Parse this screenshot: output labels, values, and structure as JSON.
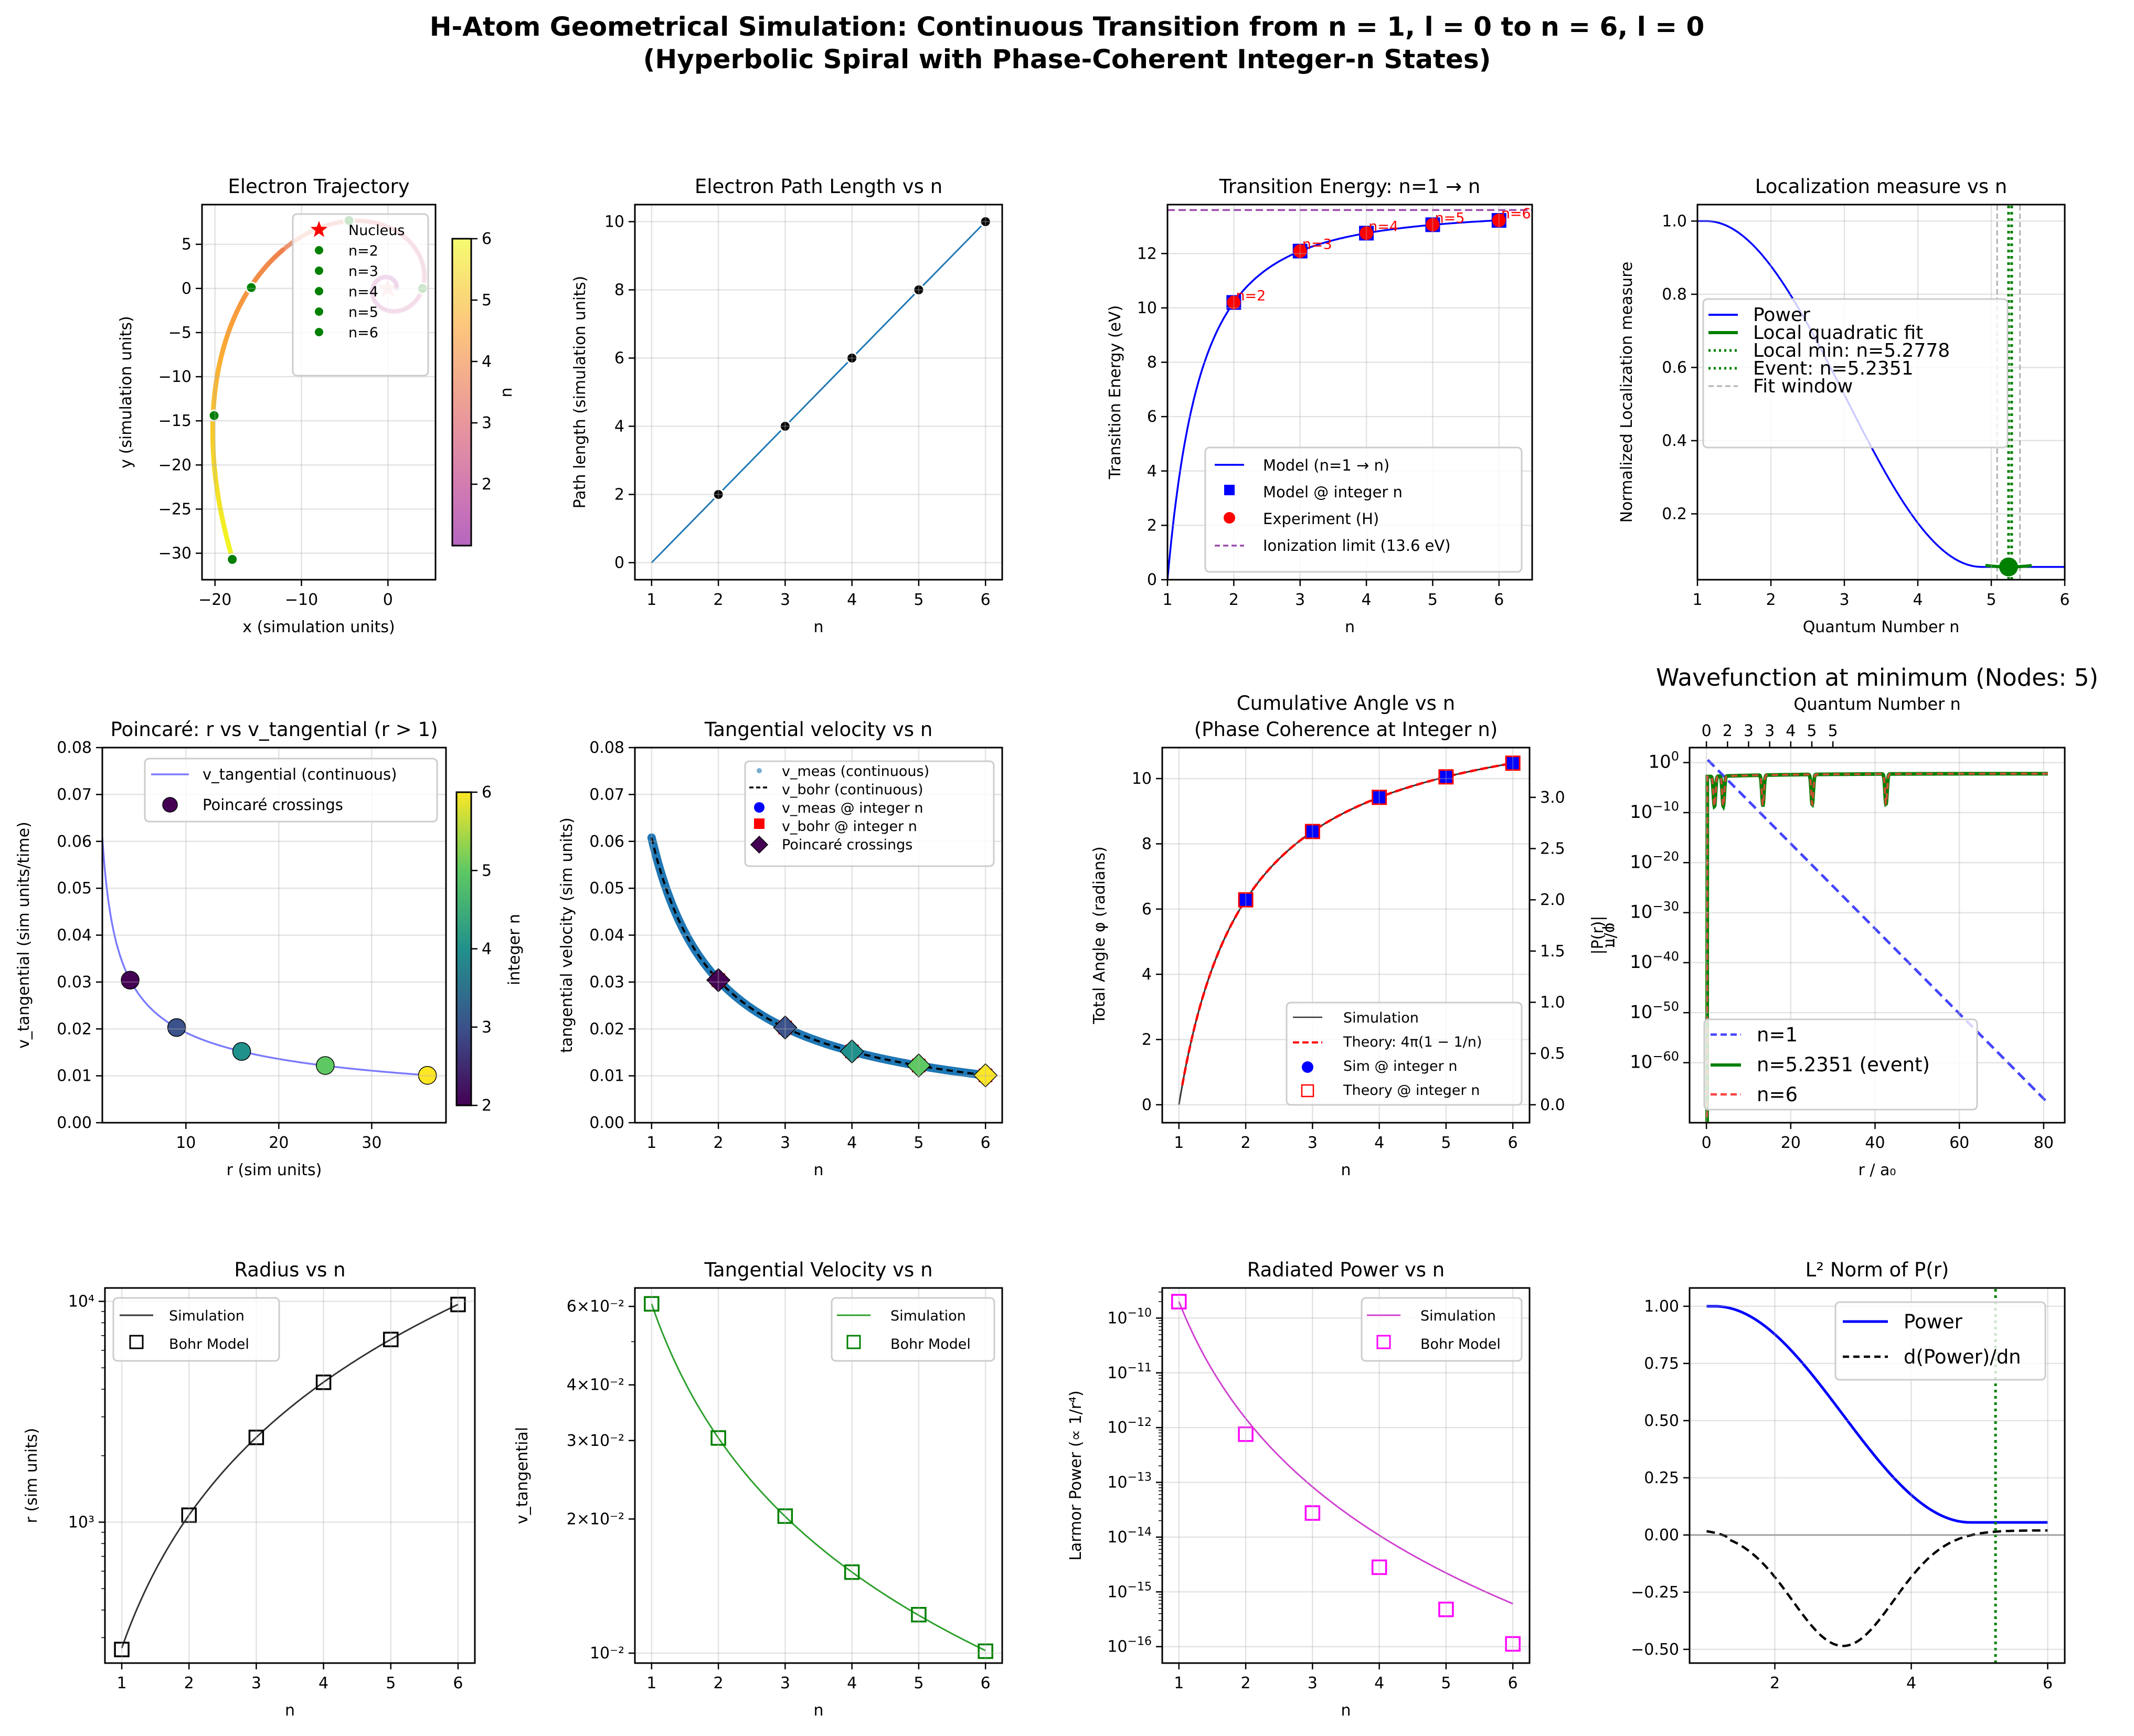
{
  "figure": {
    "suptitle_line1": "H-Atom Geometrical Simulation: Continuous Transition from n = 1, l = 0 to n = 6, l = 0",
    "suptitle_line2": "(Hyperbolic Spiral with Phase-Coherent Integer-n States)"
  },
  "chart_data": [
    {
      "id": "trajectory",
      "type": "line",
      "title": "Electron Trajectory",
      "xlabel": "x (simulation units)",
      "ylabel": "y (simulation units)",
      "xlim": [
        -21.5,
        5.5
      ],
      "ylim": [
        -33,
        9.5
      ],
      "xticks": [
        -20,
        -10,
        0
      ],
      "xtick_labels": [
        "−20",
        "−10",
        "0"
      ],
      "yticks": [
        5,
        0,
        -5,
        -10,
        -15,
        -20,
        -25,
        -30
      ],
      "ytick_labels": [
        "5",
        "0",
        "−5",
        "−10",
        "−15",
        "−20",
        "−25",
        "−30"
      ],
      "grid": true,
      "colorbar": {
        "label": "n",
        "range": [
          1,
          6
        ],
        "ticks": [
          2,
          3,
          4,
          5,
          6
        ],
        "colormap": "plasma"
      },
      "nucleus": {
        "x": 0,
        "y": 0,
        "label": "Nucleus",
        "color": "#ff0000"
      },
      "integer_points": [
        {
          "label": "n=2",
          "x": 4.0,
          "y": 0.0
        },
        {
          "label": "n=3",
          "x": -4.5,
          "y": 7.7
        },
        {
          "label": "n=4",
          "x": -15.8,
          "y": 0.1
        },
        {
          "label": "n=5",
          "x": -20.1,
          "y": -14.4
        },
        {
          "label": "n=6",
          "x": -18.0,
          "y": -30.7
        }
      ],
      "point_color": "#008000",
      "legend": [
        "Nucleus",
        "n=2",
        "n=3",
        "n=4",
        "n=5",
        "n=6"
      ],
      "legend_position": "upper-right"
    },
    {
      "id": "path_length",
      "type": "line",
      "title": "Electron Path Length vs n",
      "xlabel": "n",
      "ylabel": "Path length (simulation units)",
      "xlim": [
        0.75,
        6.25
      ],
      "ylim": [
        -0.5,
        10.5
      ],
      "xticks": [
        1,
        2,
        3,
        4,
        5,
        6
      ],
      "yticks": [
        0,
        2,
        4,
        6,
        8,
        10
      ],
      "grid": true,
      "line": {
        "x": [
          1,
          6
        ],
        "y": [
          0,
          10
        ],
        "color": "#1f77b4"
      },
      "points": {
        "x": [
          2,
          3,
          4,
          5,
          6
        ],
        "y": [
          2,
          4,
          6,
          8,
          10
        ],
        "color": "#000000"
      }
    },
    {
      "id": "transition_energy",
      "type": "line",
      "title": "Transition Energy: n=1 → n",
      "xlabel": "n",
      "ylabel": "Transition Energy (eV)",
      "xlim": [
        1,
        6.5
      ],
      "ylim": [
        0,
        13.8
      ],
      "xticks": [
        1,
        2,
        3,
        4,
        5,
        6
      ],
      "yticks": [
        0,
        2,
        4,
        6,
        8,
        10,
        12
      ],
      "grid": true,
      "ionization_limit": 13.6,
      "model_integer": {
        "x": [
          2,
          3,
          4,
          5,
          6
        ],
        "y": [
          10.2,
          12.09,
          12.75,
          13.06,
          13.22
        ]
      },
      "experiment": {
        "x": [
          2,
          3,
          4,
          5,
          6
        ],
        "y": [
          10.2,
          12.09,
          12.75,
          13.06,
          13.22
        ]
      },
      "annotations": [
        "n=2",
        "n=3",
        "n=4",
        "n=5",
        "n=6"
      ],
      "legend": [
        "Model (n=1 → n)",
        "Model @ integer n",
        "Experiment (H)",
        "Ionization limit (13.6 eV)"
      ],
      "legend_position": "lower-right",
      "colors": {
        "model": "#0000ff",
        "experiment": "#ff0000",
        "limit": "#9b4aab"
      }
    },
    {
      "id": "localization",
      "type": "line",
      "title": "Localization measure vs n",
      "xlabel": "Quantum Number n",
      "ylabel": "Normalized Localization measure",
      "xlim": [
        1,
        6
      ],
      "ylim": [
        0.02,
        1.045
      ],
      "xticks": [
        1,
        2,
        3,
        4,
        5,
        6
      ],
      "yticks": [
        0.2,
        0.4,
        0.6,
        0.8,
        1.0
      ],
      "ytick_labels": [
        "0.2",
        "0.4",
        "0.6",
        "0.8",
        "1.0"
      ],
      "grid": true,
      "local_min_n": 5.2778,
      "event_n": 5.2351,
      "fit_window": [
        5.08,
        5.39
      ],
      "event_value": 0.055,
      "legend": [
        "Power",
        "Local quadratic fit",
        "Local min: n=5.2778",
        "Event: n=5.2351",
        "Fit window"
      ],
      "legend_position": "center-left"
    },
    {
      "id": "poincare",
      "type": "scatter",
      "title": "Poincaré: r vs v_tangential (r > 1)",
      "xlabel": "r (sim units)",
      "ylabel": "v_tangential (sim units/time)",
      "xlim": [
        1,
        38
      ],
      "ylim": [
        0,
        0.08
      ],
      "xticks": [
        10,
        20,
        30
      ],
      "yticks": [
        0.0,
        0.01,
        0.02,
        0.03,
        0.04,
        0.05,
        0.06,
        0.07,
        0.08
      ],
      "ytick_labels": [
        "0.00",
        "0.01",
        "0.02",
        "0.03",
        "0.04",
        "0.05",
        "0.06",
        "0.07",
        "0.08"
      ],
      "grid": true,
      "crossings": [
        {
          "r": 4,
          "v": 0.0304,
          "n": 2
        },
        {
          "r": 9,
          "v": 0.0203,
          "n": 3
        },
        {
          "r": 16,
          "v": 0.0152,
          "n": 4
        },
        {
          "r": 25,
          "v": 0.0122,
          "n": 5
        },
        {
          "r": 36,
          "v": 0.0101,
          "n": 6
        }
      ],
      "colorbar": {
        "label": "integer n",
        "range": [
          2,
          6
        ],
        "ticks": [
          2,
          3,
          4,
          5,
          6
        ],
        "colormap": "viridis"
      },
      "legend": [
        "v_tangential (continuous)",
        "Poincaré crossings"
      ],
      "legend_position": "upper-right"
    },
    {
      "id": "tangential_velocity_linear",
      "type": "line",
      "title": "Tangential velocity vs n",
      "xlabel": "n",
      "ylabel": "tangential velocity (sim units)",
      "xlim": [
        0.75,
        6.25
      ],
      "ylim": [
        0,
        0.08
      ],
      "xticks": [
        1,
        2,
        3,
        4,
        5,
        6
      ],
      "yticks": [
        0.0,
        0.01,
        0.02,
        0.03,
        0.04,
        0.05,
        0.06,
        0.07,
        0.08
      ],
      "ytick_labels": [
        "0.00",
        "0.01",
        "0.02",
        "0.03",
        "0.04",
        "0.05",
        "0.06",
        "0.07",
        "0.08"
      ],
      "grid": true,
      "integer_n": [
        2,
        3,
        4,
        5,
        6
      ],
      "v_integer": [
        0.0304,
        0.0203,
        0.0152,
        0.0122,
        0.0101
      ],
      "v_at_n1": 0.0608,
      "legend": [
        "v_meas (continuous)",
        "v_bohr (continuous)",
        "v_meas @ integer n",
        "v_bohr @ integer n",
        "Poincaré crossings"
      ],
      "legend_position": "upper-right"
    },
    {
      "id": "cumulative_angle",
      "type": "line",
      "title": "Cumulative Angle vs n",
      "subtitle": "(Phase Coherence at Integer n)",
      "xlabel": "n",
      "ylabel": "Total Angle φ (radians)",
      "ylabel_right": "φ/π",
      "xlim": [
        0.75,
        6.25
      ],
      "ylim": [
        -0.55,
        10.95
      ],
      "xticks": [
        1,
        2,
        3,
        4,
        5,
        6
      ],
      "yticks": [
        0,
        2,
        4,
        6,
        8,
        10
      ],
      "yticks_right": [
        0.0,
        0.5,
        1.0,
        1.5,
        2.0,
        2.5,
        3.0
      ],
      "ytick_labels_right": [
        "0.0",
        "0.5",
        "1.0",
        "1.5",
        "2.0",
        "2.5",
        "3.0"
      ],
      "grid": true,
      "integer_n": [
        2,
        3,
        4,
        5,
        6
      ],
      "phi_integer": [
        6.283,
        8.378,
        9.425,
        10.053,
        10.472
      ],
      "legend": [
        "Simulation",
        "Theory: 4π(1 − 1/n)",
        "Sim @ integer n",
        "Theory @ integer n"
      ],
      "legend_position": "lower-right"
    },
    {
      "id": "wavefunction",
      "type": "line",
      "title": "Wavefunction at minimum (Nodes: 5)",
      "xlabel": "r / a₀",
      "ylabel": "|P(r)|",
      "top_xlabel": "Quantum Number n",
      "top_ticks": [
        "0",
        "2",
        "3",
        "3",
        "4",
        "5",
        "5"
      ],
      "xlim": [
        -4,
        85
      ],
      "ylim_log10": [
        -72,
        3
      ],
      "xticks": [
        0,
        20,
        40,
        60,
        80
      ],
      "yticks_log10": [
        0,
        -10,
        -20,
        -30,
        -40,
        -50,
        -60
      ],
      "grid": true,
      "node_positions_event": [
        1.9,
        4.0,
        13.4,
        25.1,
        42.6
      ],
      "legend": [
        "n=1",
        "n=5.2351 (event)",
        "n=6"
      ],
      "legend_position": "lower-left"
    },
    {
      "id": "radius",
      "type": "line",
      "title": "Radius vs n",
      "xlabel": "n",
      "ylabel": "r (sim units)",
      "yscale": "log",
      "xlim": [
        0.75,
        6.25
      ],
      "ylim": [
        230,
        11500
      ],
      "xticks": [
        1,
        2,
        3,
        4,
        5,
        6
      ],
      "yticks": [
        1000,
        10000
      ],
      "ytick_labels": [
        "10³",
        "10⁴"
      ],
      "grid": true,
      "bohr": {
        "n": [
          1,
          2,
          3,
          4,
          5,
          6
        ],
        "r": [
          265,
          1075,
          2420,
          4300,
          6720,
          9680
        ]
      },
      "legend": [
        "Simulation",
        "Bohr Model"
      ],
      "legend_position": "upper-left"
    },
    {
      "id": "tangential_velocity_log",
      "type": "line",
      "title": "Tangential Velocity vs n",
      "xlabel": "n",
      "ylabel": "v_tangential",
      "yscale": "log",
      "xlim": [
        0.75,
        6.25
      ],
      "ylim": [
        0.0095,
        0.066
      ],
      "xticks": [
        1,
        2,
        3,
        4,
        5,
        6
      ],
      "yticks": [
        0.01,
        0.02,
        0.03,
        0.04,
        0.06
      ],
      "ytick_labels": [
        "10⁻²",
        "2×10⁻²",
        "3×10⁻²",
        "4×10⁻²",
        "6×10⁻²"
      ],
      "grid": true,
      "bohr": {
        "n": [
          1,
          2,
          3,
          4,
          5,
          6
        ],
        "v": [
          0.0608,
          0.0304,
          0.0203,
          0.0152,
          0.0122,
          0.0101
        ]
      },
      "legend": [
        "Simulation",
        "Bohr Model"
      ],
      "legend_position": "upper-right"
    },
    {
      "id": "radiated_power",
      "type": "line",
      "title": "Radiated Power vs n",
      "xlabel": "n",
      "ylabel": "Larmor Power (∝ 1/r⁴)",
      "yscale": "log",
      "xlim": [
        0.75,
        6.25
      ],
      "ylim_log10": [
        -16.3,
        -9.45
      ],
      "xticks": [
        1,
        2,
        3,
        4,
        5,
        6
      ],
      "yticks_log10": [
        -10,
        -11,
        -12,
        -13,
        -14,
        -15,
        -16
      ],
      "grid": true,
      "bohr": {
        "n": [
          1,
          2,
          3,
          4,
          5,
          6
        ],
        "log10_p": [
          -9.7,
          -12.12,
          -13.56,
          -14.55,
          -15.32,
          -15.95
        ]
      },
      "legend": [
        "Simulation",
        "Bohr Model"
      ],
      "legend_position": "upper-right"
    },
    {
      "id": "l2_norm",
      "type": "line",
      "title": "L² Norm of P(r)",
      "xlabel": "",
      "ylabel": "",
      "xlim": [
        0.75,
        6.25
      ],
      "ylim": [
        -0.56,
        1.08
      ],
      "xticks": [
        2,
        4,
        6
      ],
      "yticks": [
        -0.5,
        -0.25,
        0.0,
        0.25,
        0.5,
        0.75,
        1.0
      ],
      "ytick_labels": [
        "−0.50",
        "−0.25",
        "0.00",
        "0.25",
        "0.50",
        "0.75",
        "1.00"
      ],
      "grid": true,
      "event_n": 5.2351,
      "derivative_min": {
        "n": 3.0,
        "value": -0.485
      },
      "legend": [
        "Power",
        "d(Power)/dn"
      ],
      "legend_position": "upper-right"
    }
  ]
}
